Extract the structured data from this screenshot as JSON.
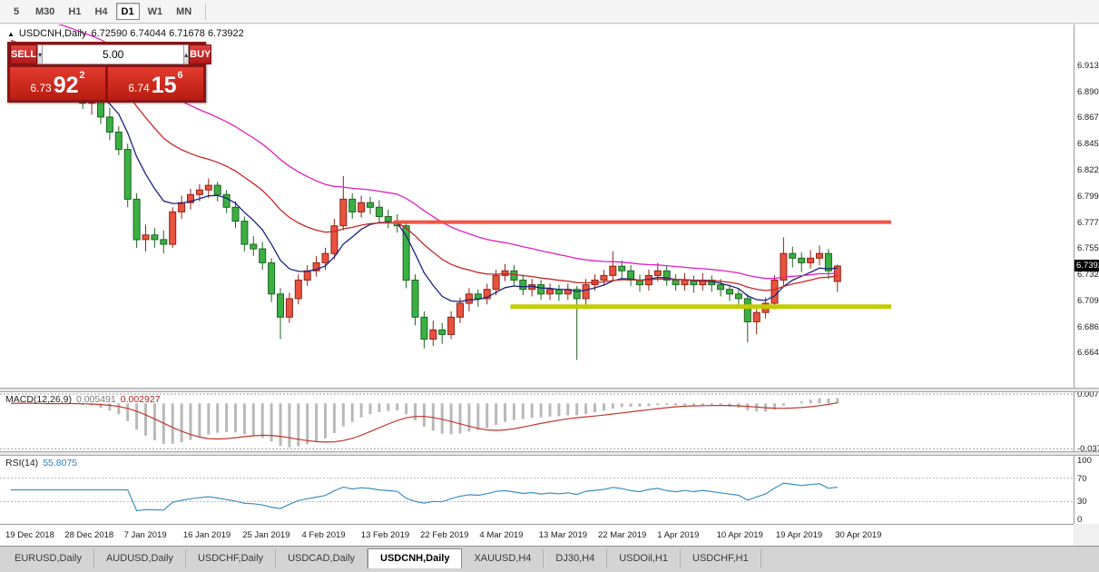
{
  "toolbar": {
    "timeframes": [
      "5",
      "M30",
      "H1",
      "H4",
      "D1",
      "W1",
      "MN"
    ],
    "active": "D1"
  },
  "chart": {
    "title_text": "USDCNH,Daily",
    "ohlc_text": "6.72590 6.74044 6.71678 6.73922",
    "current_price": "6.73922",
    "price_axis_labels": [
      "6.91305",
      "6.89030",
      "6.86755",
      "6.84545",
      "6.82270",
      "6.79995",
      "6.77720",
      "6.75510",
      "6.73235",
      "6.70960",
      "6.68685",
      "6.66475"
    ]
  },
  "trade_panel": {
    "sell_label": "SELL",
    "buy_label": "BUY",
    "volume": "5.00",
    "sell_price": {
      "base": "6.73",
      "big": "92",
      "sup": "2"
    },
    "buy_price": {
      "base": "6.74",
      "big": "15",
      "sup": "6"
    }
  },
  "macd_panel": {
    "label": "MACD(12,26,9)",
    "main_value": "0.005491",
    "signal_value": "0.002927",
    "axis_max": "0.007738",
    "axis_min": "-0.037714"
  },
  "rsi_panel": {
    "label": "RSI(14)",
    "value": "55.8075",
    "axis_labels": [
      "100",
      "70",
      "30",
      "0"
    ]
  },
  "tabs": {
    "items": [
      "EURUSD,Daily",
      "AUDUSD,Daily",
      "USDCHF,Daily",
      "USDCAD,Daily",
      "USDCNH,Daily",
      "XAUUSD,H4",
      "DJ30,H4",
      "USDOil,H1",
      "USDCHF,H1"
    ],
    "active_index": 4
  },
  "chart_data": {
    "type": "candlestick",
    "symbol": "USDCNH",
    "timeframe": "Daily",
    "last_candle": {
      "open": 6.7259,
      "high": 6.74044,
      "low": 6.71678,
      "close": 6.73922
    },
    "y_range": {
      "max": 6.948,
      "min": 6.634
    },
    "x_labels": [
      "19 Dec 2018",
      "28 Dec 2018",
      "7 Jan 2019",
      "16 Jan 2019",
      "25 Jan 2019",
      "4 Feb 2019",
      "13 Feb 2019",
      "22 Feb 2019",
      "4 Mar 2019",
      "13 Mar 2019",
      "22 Mar 2019",
      "1 Apr 2019",
      "10 Apr 2019",
      "19 Apr 2019",
      "30 Apr 2019"
    ],
    "colors": {
      "bull": {
        "fill": "#e8523f",
        "border": "#8f2314"
      },
      "bear": {
        "fill": "#3cb043",
        "border": "#1c6423"
      }
    },
    "hlines": [
      {
        "name": "resistance-line",
        "price": 6.7772,
        "from_index": 43,
        "color": "#f05545",
        "width": 4
      },
      {
        "name": "support-line",
        "price": 6.704,
        "from_index": 56,
        "color": "#c3cc00",
        "width": 5
      }
    ],
    "indicators": {
      "moving_averages": [
        {
          "name": "fast-ma",
          "period": 8,
          "color": "#1a237e",
          "seed": 6.905
        },
        {
          "name": "mid-ma",
          "period": 22,
          "color": "#c62828",
          "seed": 6.938
        },
        {
          "name": "slow-ma",
          "period": 40,
          "color": "#e020c0",
          "seed": 6.968
        }
      ],
      "macd": {
        "fast": 12,
        "slow": 26,
        "signal": 9,
        "histogram_color": "#b9b9b9",
        "signal_color": "#c0392b"
      },
      "rsi": {
        "period": 14,
        "color": "#3f8fc0",
        "levels": [
          70,
          30
        ]
      }
    },
    "candles": [
      [
        6.892,
        6.903,
        6.887,
        6.896
      ],
      [
        6.896,
        6.906,
        6.892,
        6.9
      ],
      [
        6.9,
        6.904,
        6.889,
        6.893
      ],
      [
        6.893,
        6.9,
        6.886,
        6.89
      ],
      [
        6.89,
        6.898,
        6.884,
        6.892
      ],
      [
        6.892,
        6.92,
        6.888,
        6.896
      ],
      [
        6.896,
        6.915,
        6.89,
        6.905
      ],
      [
        6.905,
        6.912,
        6.884,
        6.888
      ],
      [
        6.888,
        6.895,
        6.875,
        6.88
      ],
      [
        6.88,
        6.892,
        6.87,
        6.888
      ],
      [
        6.888,
        6.893,
        6.862,
        6.868
      ],
      [
        6.868,
        6.876,
        6.848,
        6.855
      ],
      [
        6.855,
        6.86,
        6.835,
        6.84
      ],
      [
        6.84,
        6.845,
        6.79,
        6.797
      ],
      [
        6.797,
        6.802,
        6.755,
        6.762
      ],
      [
        6.762,
        6.775,
        6.752,
        6.766
      ],
      [
        6.766,
        6.772,
        6.755,
        6.762
      ],
      [
        6.762,
        6.77,
        6.75,
        6.758
      ],
      [
        6.758,
        6.79,
        6.755,
        6.786
      ],
      [
        6.786,
        6.8,
        6.78,
        6.794
      ],
      [
        6.794,
        6.806,
        6.788,
        6.801
      ],
      [
        6.801,
        6.81,
        6.795,
        6.805
      ],
      [
        6.805,
        6.815,
        6.798,
        6.809
      ],
      [
        6.809,
        6.812,
        6.795,
        6.801
      ],
      [
        6.801,
        6.805,
        6.785,
        6.79
      ],
      [
        6.79,
        6.795,
        6.772,
        6.778
      ],
      [
        6.778,
        6.782,
        6.752,
        6.758
      ],
      [
        6.758,
        6.765,
        6.748,
        6.754
      ],
      [
        6.754,
        6.76,
        6.736,
        6.742
      ],
      [
        6.742,
        6.746,
        6.708,
        6.715
      ],
      [
        6.715,
        6.72,
        6.676,
        6.695
      ],
      [
        6.695,
        6.716,
        6.69,
        6.711
      ],
      [
        6.711,
        6.732,
        6.706,
        6.727
      ],
      [
        6.727,
        6.74,
        6.722,
        6.735
      ],
      [
        6.735,
        6.748,
        6.73,
        6.742
      ],
      [
        6.742,
        6.755,
        6.736,
        6.75
      ],
      [
        6.75,
        6.78,
        6.745,
        6.774
      ],
      [
        6.774,
        6.817,
        6.77,
        6.797
      ],
      [
        6.797,
        6.802,
        6.78,
        6.786
      ],
      [
        6.786,
        6.8,
        6.781,
        6.794
      ],
      [
        6.794,
        6.799,
        6.784,
        6.79
      ],
      [
        6.79,
        6.796,
        6.777,
        6.782
      ],
      [
        6.782,
        6.788,
        6.772,
        6.778
      ],
      [
        6.778,
        6.784,
        6.768,
        6.774
      ],
      [
        6.774,
        6.777,
        6.72,
        6.727
      ],
      [
        6.727,
        6.732,
        6.688,
        6.695
      ],
      [
        6.695,
        6.7,
        6.668,
        6.676
      ],
      [
        6.676,
        6.692,
        6.67,
        6.684
      ],
      [
        6.684,
        6.69,
        6.672,
        6.68
      ],
      [
        6.68,
        6.7,
        6.676,
        6.695
      ],
      [
        6.695,
        6.712,
        6.69,
        6.707
      ],
      [
        6.707,
        6.72,
        6.7,
        6.715
      ],
      [
        6.715,
        6.719,
        6.704,
        6.711
      ],
      [
        6.711,
        6.724,
        6.706,
        6.719
      ],
      [
        6.719,
        6.736,
        6.714,
        6.731
      ],
      [
        6.731,
        6.741,
        6.726,
        6.735
      ],
      [
        6.735,
        6.74,
        6.722,
        6.727
      ],
      [
        6.727,
        6.732,
        6.714,
        6.719
      ],
      [
        6.719,
        6.728,
        6.713,
        6.723
      ],
      [
        6.723,
        6.727,
        6.71,
        6.715
      ],
      [
        6.715,
        6.724,
        6.71,
        6.719
      ],
      [
        6.719,
        6.723,
        6.709,
        6.715
      ],
      [
        6.715,
        6.724,
        6.71,
        6.719
      ],
      [
        6.719,
        6.722,
        6.658,
        6.711
      ],
      [
        6.711,
        6.728,
        6.706,
        6.723
      ],
      [
        6.723,
        6.732,
        6.718,
        6.727
      ],
      [
        6.727,
        6.736,
        6.722,
        6.731
      ],
      [
        6.731,
        6.752,
        6.726,
        6.739
      ],
      [
        6.739,
        6.744,
        6.728,
        6.735
      ],
      [
        6.735,
        6.74,
        6.722,
        6.727
      ],
      [
        6.727,
        6.732,
        6.717,
        6.723
      ],
      [
        6.723,
        6.736,
        6.718,
        6.731
      ],
      [
        6.731,
        6.742,
        6.726,
        6.735
      ],
      [
        6.735,
        6.74,
        6.722,
        6.727
      ],
      [
        6.727,
        6.732,
        6.718,
        6.723
      ],
      [
        6.723,
        6.733,
        6.718,
        6.727
      ],
      [
        6.727,
        6.731,
        6.716,
        6.723
      ],
      [
        6.723,
        6.733,
        6.718,
        6.727
      ],
      [
        6.727,
        6.731,
        6.717,
        6.723
      ],
      [
        6.723,
        6.728,
        6.713,
        6.719
      ],
      [
        6.719,
        6.723,
        6.709,
        6.715
      ],
      [
        6.715,
        6.72,
        6.705,
        6.711
      ],
      [
        6.711,
        6.715,
        6.673,
        6.691
      ],
      [
        6.691,
        6.704,
        6.68,
        6.699
      ],
      [
        6.699,
        6.712,
        6.694,
        6.707
      ],
      [
        6.707,
        6.731,
        6.702,
        6.727
      ],
      [
        6.727,
        6.764,
        6.722,
        6.75
      ],
      [
        6.75,
        6.756,
        6.738,
        6.746
      ],
      [
        6.746,
        6.751,
        6.734,
        6.742
      ],
      [
        6.742,
        6.753,
        6.737,
        6.746
      ],
      [
        6.746,
        6.757,
        6.74,
        6.75
      ],
      [
        6.75,
        6.754,
        6.728,
        6.735
      ],
      [
        6.7259,
        6.74044,
        6.71678,
        6.73922
      ]
    ]
  }
}
